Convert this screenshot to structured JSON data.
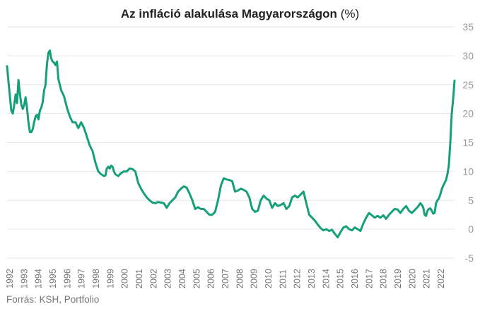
{
  "chart_data": {
    "type": "line",
    "title": "Az infláció alakulása Magyarországon",
    "title_unit": "(%)",
    "source": "Forrás: KSH, Portfolio",
    "ylim": [
      -5,
      35
    ],
    "yticks": [
      -5,
      0,
      5,
      10,
      15,
      20,
      25,
      30,
      35
    ],
    "xlim": [
      1992,
      2022.7
    ],
    "xticks": [
      "1992",
      "1993",
      "1994",
      "1995",
      "1996",
      "1997",
      "1998",
      "1999",
      "2000",
      "2001",
      "2002",
      "2003",
      "2004",
      "2005",
      "2006",
      "2007",
      "2008",
      "2009",
      "2010",
      "2011",
      "2012",
      "2013",
      "2014",
      "2015",
      "2016",
      "2017",
      "2018",
      "2019",
      "2020",
      "2021",
      "2022"
    ],
    "grid": "horizontal",
    "line_color": "#16a07a",
    "series": [
      {
        "points": [
          [
            1992.0,
            28.2
          ],
          [
            1992.1,
            25.5
          ],
          [
            1992.2,
            23.0
          ],
          [
            1992.3,
            20.5
          ],
          [
            1992.4,
            20.0
          ],
          [
            1992.5,
            21.5
          ],
          [
            1992.6,
            23.3
          ],
          [
            1992.7,
            21.8
          ],
          [
            1992.8,
            25.8
          ],
          [
            1992.9,
            23.5
          ],
          [
            1993.0,
            21.5
          ],
          [
            1993.1,
            20.8
          ],
          [
            1993.2,
            21.5
          ],
          [
            1993.3,
            22.8
          ],
          [
            1993.4,
            21.0
          ],
          [
            1993.5,
            18.5
          ],
          [
            1993.6,
            16.8
          ],
          [
            1993.7,
            16.8
          ],
          [
            1993.8,
            17.3
          ],
          [
            1993.9,
            18.5
          ],
          [
            1994.0,
            19.5
          ],
          [
            1994.1,
            19.8
          ],
          [
            1994.2,
            19.0
          ],
          [
            1994.3,
            20.5
          ],
          [
            1994.4,
            21.0
          ],
          [
            1994.5,
            22.0
          ],
          [
            1994.6,
            24.0
          ],
          [
            1994.7,
            25.0
          ],
          [
            1994.8,
            28.5
          ],
          [
            1994.9,
            30.5
          ],
          [
            1995.0,
            30.9
          ],
          [
            1995.1,
            29.5
          ],
          [
            1995.2,
            29.0
          ],
          [
            1995.3,
            28.8
          ],
          [
            1995.4,
            28.4
          ],
          [
            1995.5,
            29.0
          ],
          [
            1995.6,
            26.0
          ],
          [
            1995.7,
            25.0
          ],
          [
            1995.8,
            24.0
          ],
          [
            1995.9,
            23.5
          ],
          [
            1996.0,
            23.0
          ],
          [
            1996.2,
            21.0
          ],
          [
            1996.4,
            19.5
          ],
          [
            1996.6,
            18.5
          ],
          [
            1996.8,
            18.5
          ],
          [
            1997.0,
            17.5
          ],
          [
            1997.2,
            18.5
          ],
          [
            1997.4,
            17.5
          ],
          [
            1997.6,
            16.0
          ],
          [
            1997.8,
            14.5
          ],
          [
            1998.0,
            13.5
          ],
          [
            1998.2,
            11.5
          ],
          [
            1998.4,
            10.0
          ],
          [
            1998.6,
            9.5
          ],
          [
            1998.8,
            9.2
          ],
          [
            1998.9,
            9.3
          ],
          [
            1999.0,
            10.5
          ],
          [
            1999.1,
            10.8
          ],
          [
            1999.2,
            10.5
          ],
          [
            1999.3,
            11.0
          ],
          [
            1999.4,
            10.8
          ],
          [
            1999.5,
            10.0
          ],
          [
            1999.6,
            9.5
          ],
          [
            1999.8,
            9.2
          ],
          [
            2000.0,
            9.7
          ],
          [
            2000.2,
            10.0
          ],
          [
            2000.4,
            10.0
          ],
          [
            2000.6,
            10.5
          ],
          [
            2000.8,
            10.4
          ],
          [
            2001.0,
            10.0
          ],
          [
            2001.2,
            8.0
          ],
          [
            2001.4,
            7.0
          ],
          [
            2001.6,
            6.2
          ],
          [
            2001.8,
            5.5
          ],
          [
            2002.0,
            5.0
          ],
          [
            2002.2,
            4.6
          ],
          [
            2002.4,
            4.5
          ],
          [
            2002.6,
            4.7
          ],
          [
            2002.8,
            4.6
          ],
          [
            2003.0,
            4.5
          ],
          [
            2003.2,
            3.7
          ],
          [
            2003.4,
            4.5
          ],
          [
            2003.6,
            5.0
          ],
          [
            2003.8,
            5.5
          ],
          [
            2004.0,
            6.5
          ],
          [
            2004.2,
            7.0
          ],
          [
            2004.4,
            7.4
          ],
          [
            2004.6,
            7.2
          ],
          [
            2004.8,
            6.2
          ],
          [
            2005.0,
            5.0
          ],
          [
            2005.2,
            3.5
          ],
          [
            2005.4,
            3.8
          ],
          [
            2005.6,
            3.5
          ],
          [
            2005.8,
            3.5
          ],
          [
            2006.0,
            3.0
          ],
          [
            2006.2,
            2.5
          ],
          [
            2006.4,
            2.5
          ],
          [
            2006.6,
            3.0
          ],
          [
            2006.8,
            5.0
          ],
          [
            2007.0,
            7.5
          ],
          [
            2007.2,
            8.8
          ],
          [
            2007.4,
            8.6
          ],
          [
            2007.6,
            8.5
          ],
          [
            2007.8,
            8.3
          ],
          [
            2008.0,
            6.5
          ],
          [
            2008.2,
            6.7
          ],
          [
            2008.4,
            7.0
          ],
          [
            2008.6,
            6.8
          ],
          [
            2008.8,
            6.5
          ],
          [
            2009.0,
            5.5
          ],
          [
            2009.2,
            3.5
          ],
          [
            2009.4,
            3.0
          ],
          [
            2009.6,
            3.2
          ],
          [
            2009.8,
            5.0
          ],
          [
            2010.0,
            5.8
          ],
          [
            2010.2,
            5.3
          ],
          [
            2010.4,
            5.0
          ],
          [
            2010.6,
            3.7
          ],
          [
            2010.8,
            4.5
          ],
          [
            2011.0,
            4.0
          ],
          [
            2011.2,
            4.2
          ],
          [
            2011.4,
            4.5
          ],
          [
            2011.6,
            3.5
          ],
          [
            2011.8,
            4.0
          ],
          [
            2012.0,
            5.5
          ],
          [
            2012.2,
            5.8
          ],
          [
            2012.4,
            5.5
          ],
          [
            2012.6,
            6.0
          ],
          [
            2012.8,
            6.5
          ],
          [
            2013.0,
            4.5
          ],
          [
            2013.2,
            2.5
          ],
          [
            2013.4,
            2.0
          ],
          [
            2013.6,
            1.5
          ],
          [
            2013.8,
            0.8
          ],
          [
            2014.0,
            0.2
          ],
          [
            2014.2,
            -0.2
          ],
          [
            2014.4,
            0.0
          ],
          [
            2014.6,
            -0.3
          ],
          [
            2014.8,
            -0.1
          ],
          [
            2015.0,
            -0.8
          ],
          [
            2015.2,
            -1.4
          ],
          [
            2015.4,
            -0.5
          ],
          [
            2015.6,
            0.3
          ],
          [
            2015.8,
            0.5
          ],
          [
            2016.0,
            0.0
          ],
          [
            2016.2,
            -0.2
          ],
          [
            2016.4,
            0.3
          ],
          [
            2016.6,
            0.0
          ],
          [
            2016.8,
            -0.3
          ],
          [
            2017.0,
            1.0
          ],
          [
            2017.2,
            2.0
          ],
          [
            2017.4,
            2.8
          ],
          [
            2017.6,
            2.4
          ],
          [
            2017.8,
            2.0
          ],
          [
            2018.0,
            2.3
          ],
          [
            2018.2,
            2.0
          ],
          [
            2018.4,
            2.4
          ],
          [
            2018.6,
            1.8
          ],
          [
            2018.8,
            2.5
          ],
          [
            2019.0,
            3.0
          ],
          [
            2019.2,
            3.5
          ],
          [
            2019.4,
            3.4
          ],
          [
            2019.6,
            2.8
          ],
          [
            2019.8,
            3.5
          ],
          [
            2020.0,
            4.0
          ],
          [
            2020.2,
            3.2
          ],
          [
            2020.4,
            2.8
          ],
          [
            2020.6,
            3.3
          ],
          [
            2020.8,
            3.8
          ],
          [
            2021.0,
            4.5
          ],
          [
            2021.1,
            4.2
          ],
          [
            2021.2,
            3.8
          ],
          [
            2021.3,
            2.5
          ],
          [
            2021.4,
            2.3
          ],
          [
            2021.5,
            3.2
          ],
          [
            2021.6,
            3.5
          ],
          [
            2021.7,
            3.6
          ],
          [
            2021.8,
            3.2
          ],
          [
            2021.9,
            2.7
          ],
          [
            2022.0,
            2.8
          ],
          [
            2022.1,
            4.5
          ],
          [
            2022.2,
            5.0
          ],
          [
            2022.3,
            5.3
          ],
          [
            2022.4,
            6.0
          ],
          [
            2022.5,
            6.9
          ],
          [
            2022.6,
            7.5
          ],
          [
            2022.7,
            8.0
          ],
          [
            2022.8,
            8.5
          ],
          [
            2022.9,
            9.5
          ],
          [
            2023.0,
            11.0
          ],
          [
            2023.1,
            15.0
          ],
          [
            2023.2,
            20.0
          ],
          [
            2023.3,
            22.5
          ],
          [
            2023.4,
            25.7
          ]
        ]
      }
    ]
  }
}
